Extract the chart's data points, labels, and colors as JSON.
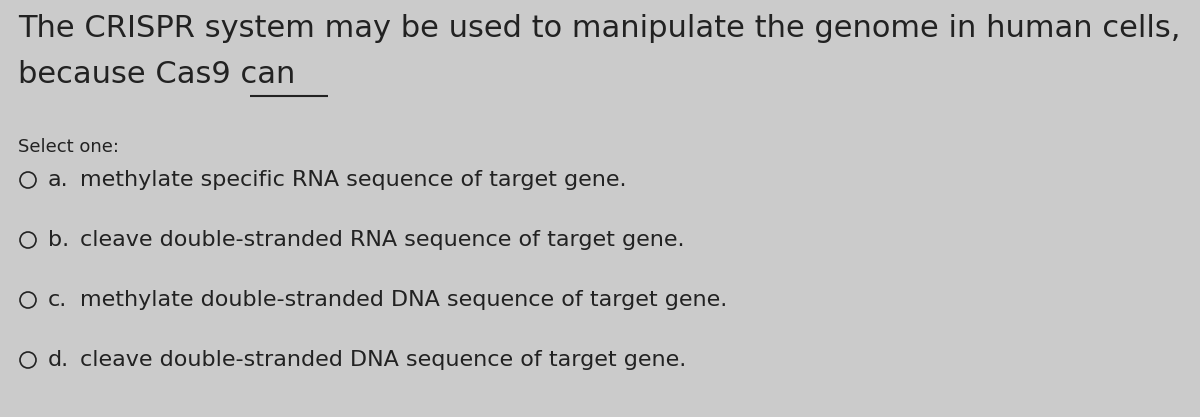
{
  "bg_color": "#cbcbcb",
  "text_color": "#222222",
  "question_line1": "The CRISPR system may be used to manipulate the genome in human cells,",
  "question_line2": "because Cas9 can",
  "select_one": "Select one:",
  "options": [
    {
      "label": "a.",
      "text": "methylate specific RNA sequence of target gene."
    },
    {
      "label": "b.",
      "text": "cleave double-stranded RNA sequence of target gene."
    },
    {
      "label": "c.",
      "text": "methylate double-stranded DNA sequence of target gene."
    },
    {
      "label": "d.",
      "text": "cleave double-stranded DNA sequence of target gene."
    }
  ],
  "q_fontsize": 22,
  "select_fontsize": 13,
  "opt_label_fontsize": 16,
  "opt_text_fontsize": 16,
  "fig_width": 12.0,
  "fig_height": 4.17,
  "dpi": 100
}
